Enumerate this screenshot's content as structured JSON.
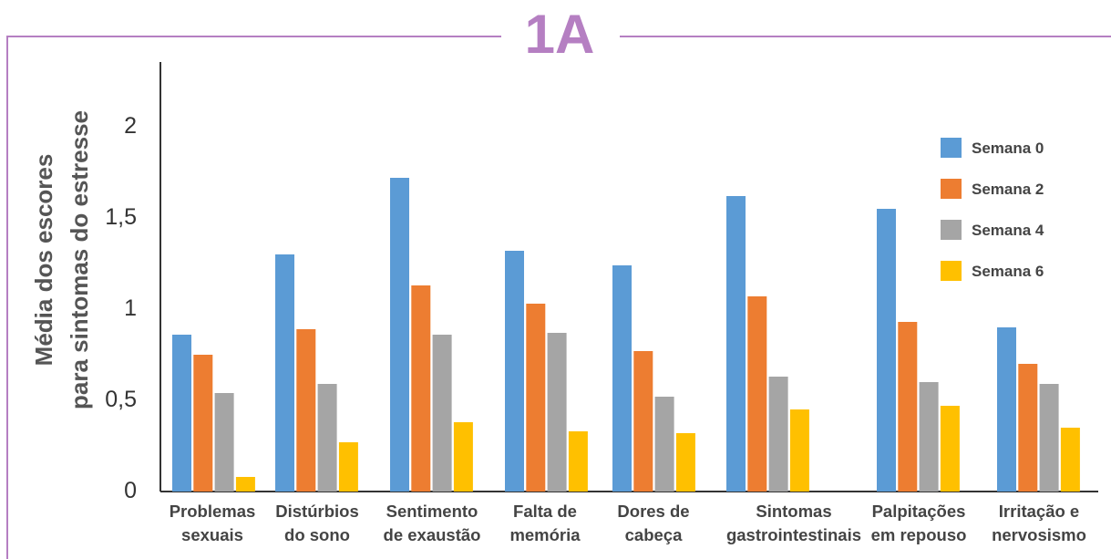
{
  "panel_label": "1A",
  "colors": {
    "frame": "#b57fc2",
    "panel_label": "#b57fc2",
    "axis": "#333333"
  },
  "chart_data": {
    "type": "bar",
    "title": "",
    "ylabel_lines": [
      "Média dos escores",
      "para sintomas do estresse"
    ],
    "xlabel": "",
    "ylim": [
      0,
      2.3
    ],
    "yticks": [
      {
        "value": 0,
        "label": "0"
      },
      {
        "value": 0.5,
        "label": "0,5"
      },
      {
        "value": 1,
        "label": "1"
      },
      {
        "value": 1.5,
        "label": "1,5"
      },
      {
        "value": 2,
        "label": "2"
      }
    ],
    "grid": false,
    "legend_position": "top-right",
    "categories": [
      [
        "Problemas",
        "sexuais"
      ],
      [
        "Distúrbios",
        "do sono"
      ],
      [
        "Sentimento",
        "de exaustão"
      ],
      [
        "Falta de",
        "memória"
      ],
      [
        "Dores de",
        "cabeça"
      ],
      [
        "Sintomas",
        "gastrointestinais"
      ],
      [
        "Palpitações",
        "em repouso"
      ],
      [
        "Irritação e",
        "nervosismo"
      ]
    ],
    "series": [
      {
        "name": "Semana 0",
        "color": "#5b9bd5",
        "values": [
          0.85,
          1.29,
          1.71,
          1.31,
          1.23,
          1.61,
          1.54,
          0.89
        ]
      },
      {
        "name": "Semana 2",
        "color": "#ed7d31",
        "values": [
          0.74,
          0.88,
          1.12,
          1.02,
          0.76,
          1.06,
          0.92,
          0.69
        ]
      },
      {
        "name": "Semana 4",
        "color": "#a5a5a5",
        "values": [
          0.53,
          0.58,
          0.85,
          0.86,
          0.51,
          0.62,
          0.59,
          0.58
        ]
      },
      {
        "name": "Semana 6",
        "color": "#ffc000",
        "values": [
          0.07,
          0.26,
          0.37,
          0.32,
          0.31,
          0.44,
          0.46,
          0.34
        ]
      }
    ]
  }
}
